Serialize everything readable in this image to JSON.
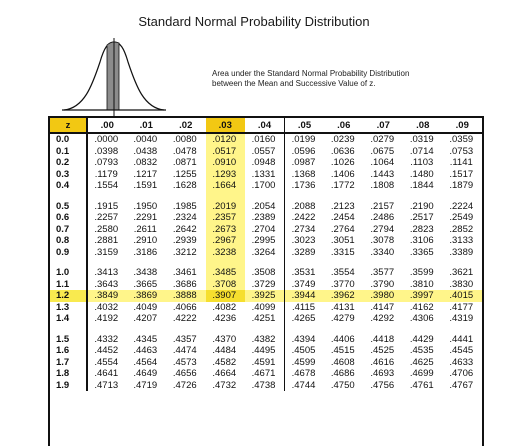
{
  "title": "Standard Normal Probability Distribution",
  "note_lines": [
    "Area under the Standard Normal Probability Distribution",
    "between the Mean and Successive Value of z."
  ],
  "colors": {
    "highlight": "#f2c813",
    "highlight_light": "#fff58a"
  },
  "table": {
    "headers": [
      "z",
      ".00",
      ".01",
      ".02",
      ".03",
      ".04",
      ".05",
      ".06",
      ".07",
      ".08",
      ".09"
    ],
    "highlight_column": ".03",
    "highlight_row": "1.2",
    "rows": [
      [
        "0.0",
        ".0000",
        ".0040",
        ".0080",
        ".0120",
        ".0160",
        ".0199",
        ".0239",
        ".0279",
        ".0319",
        ".0359"
      ],
      [
        "0.1",
        ".0398",
        ".0438",
        ".0478",
        ".0517",
        ".0557",
        ".0596",
        ".0636",
        ".0675",
        ".0714",
        ".0753"
      ],
      [
        "0.2",
        ".0793",
        ".0832",
        ".0871",
        ".0910",
        ".0948",
        ".0987",
        ".1026",
        ".1064",
        ".1103",
        ".1141"
      ],
      [
        "0.3",
        ".1179",
        ".1217",
        ".1255",
        ".1293",
        ".1331",
        ".1368",
        ".1406",
        ".1443",
        ".1480",
        ".1517"
      ],
      [
        "0.4",
        ".1554",
        ".1591",
        ".1628",
        ".1664",
        ".1700",
        ".1736",
        ".1772",
        ".1808",
        ".1844",
        ".1879"
      ],
      [
        "0.5",
        ".1915",
        ".1950",
        ".1985",
        ".2019",
        ".2054",
        ".2088",
        ".2123",
        ".2157",
        ".2190",
        ".2224"
      ],
      [
        "0.6",
        ".2257",
        ".2291",
        ".2324",
        ".2357",
        ".2389",
        ".2422",
        ".2454",
        ".2486",
        ".2517",
        ".2549"
      ],
      [
        "0.7",
        ".2580",
        ".2611",
        ".2642",
        ".2673",
        ".2704",
        ".2734",
        ".2764",
        ".2794",
        ".2823",
        ".2852"
      ],
      [
        "0.8",
        ".2881",
        ".2910",
        ".2939",
        ".2967",
        ".2995",
        ".3023",
        ".3051",
        ".3078",
        ".3106",
        ".3133"
      ],
      [
        "0.9",
        ".3159",
        ".3186",
        ".3212",
        ".3238",
        ".3264",
        ".3289",
        ".3315",
        ".3340",
        ".3365",
        ".3389"
      ],
      [
        "1.0",
        ".3413",
        ".3438",
        ".3461",
        ".3485",
        ".3508",
        ".3531",
        ".3554",
        ".3577",
        ".3599",
        ".3621"
      ],
      [
        "1.1",
        ".3643",
        ".3665",
        ".3686",
        ".3708",
        ".3729",
        ".3749",
        ".3770",
        ".3790",
        ".3810",
        ".3830"
      ],
      [
        "1.2",
        ".3849",
        ".3869",
        ".3888",
        ".3907",
        ".3925",
        ".3944",
        ".3962",
        ".3980",
        ".3997",
        ".4015"
      ],
      [
        "1.3",
        ".4032",
        ".4049",
        ".4066",
        ".4082",
        ".4099",
        ".4115",
        ".4131",
        ".4147",
        ".4162",
        ".4177"
      ],
      [
        "1.4",
        ".4192",
        ".4207",
        ".4222",
        ".4236",
        ".4251",
        ".4265",
        ".4279",
        ".4292",
        ".4306",
        ".4319"
      ],
      [
        "1.5",
        ".4332",
        ".4345",
        ".4357",
        ".4370",
        ".4382",
        ".4394",
        ".4406",
        ".4418",
        ".4429",
        ".4441"
      ],
      [
        "1.6",
        ".4452",
        ".4463",
        ".4474",
        ".4484",
        ".4495",
        ".4505",
        ".4515",
        ".4525",
        ".4535",
        ".4545"
      ],
      [
        "1.7",
        ".4554",
        ".4564",
        ".4573",
        ".4582",
        ".4591",
        ".4599",
        ".4608",
        ".4616",
        ".4625",
        ".4633"
      ],
      [
        "1.8",
        ".4641",
        ".4649",
        ".4656",
        ".4664",
        ".4671",
        ".4678",
        ".4686",
        ".4693",
        ".4699",
        ".4706"
      ],
      [
        "1.9",
        ".4713",
        ".4719",
        ".4726",
        ".4732",
        ".4738",
        ".4744",
        ".4750",
        ".4756",
        ".4761",
        ".4767"
      ]
    ]
  }
}
